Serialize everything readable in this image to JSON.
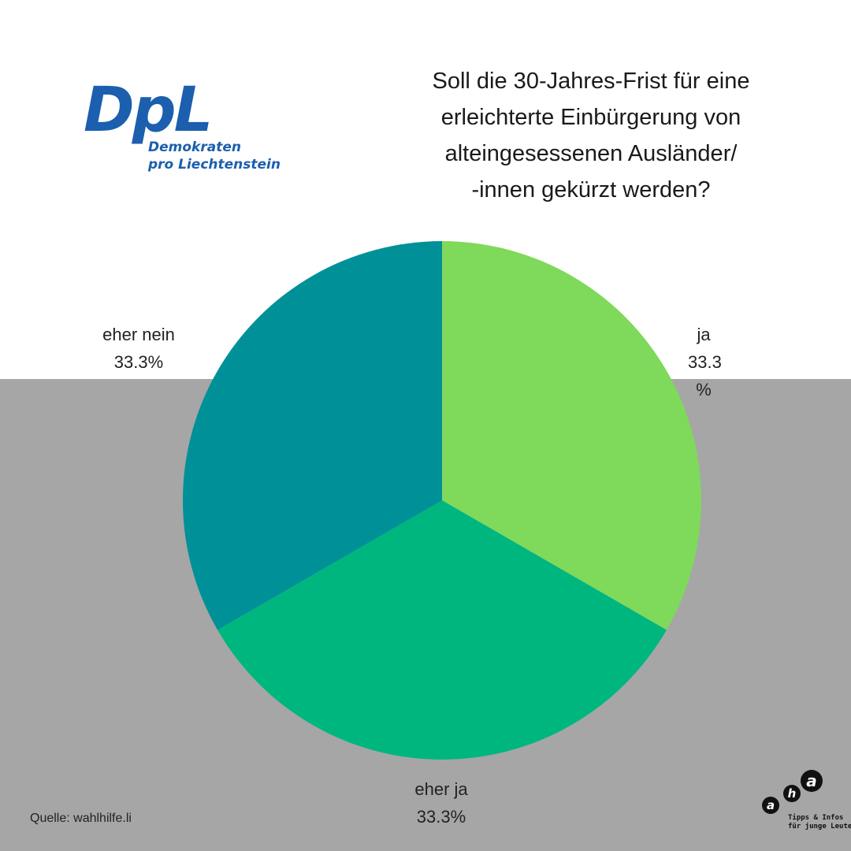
{
  "logo": {
    "mark": "DpL",
    "line1": "Demokraten",
    "line2": "pro Liechtenstein",
    "color": "#1b5fae"
  },
  "title_lines": [
    "Soll die 30-Jahres-Frist für eine",
    "erleichterte Einbürgerung von",
    "alteingesessenen Ausländer/",
    "-innen gekürzt werden?"
  ],
  "source": "Quelle: wahlhilfe.li",
  "footer_logo": {
    "letters": [
      "a",
      "h",
      "a"
    ],
    "tagline1": "Tipps & Infos",
    "tagline2": "für junge Leute"
  },
  "background": {
    "top": "#ffffff",
    "bottom": "#a6a6a6"
  },
  "chart_data": {
    "type": "pie",
    "title": "Soll die 30-Jahres-Frist für eine erleichterte Einbürgerung von alteingesessenen Ausländer/-innen gekürzt werden?",
    "slices": [
      {
        "label": "ja",
        "value": 33.3,
        "value_label": "33.3 %",
        "color": "#7fd95a"
      },
      {
        "label": "eher ja",
        "value": 33.3,
        "value_label": "33.3%",
        "color": "#00b67f"
      },
      {
        "label": "eher nein",
        "value": 33.3,
        "value_label": "33.3%",
        "color": "#009198"
      }
    ],
    "start_angle_deg": 0,
    "direction": "clockwise",
    "legend": "none"
  }
}
